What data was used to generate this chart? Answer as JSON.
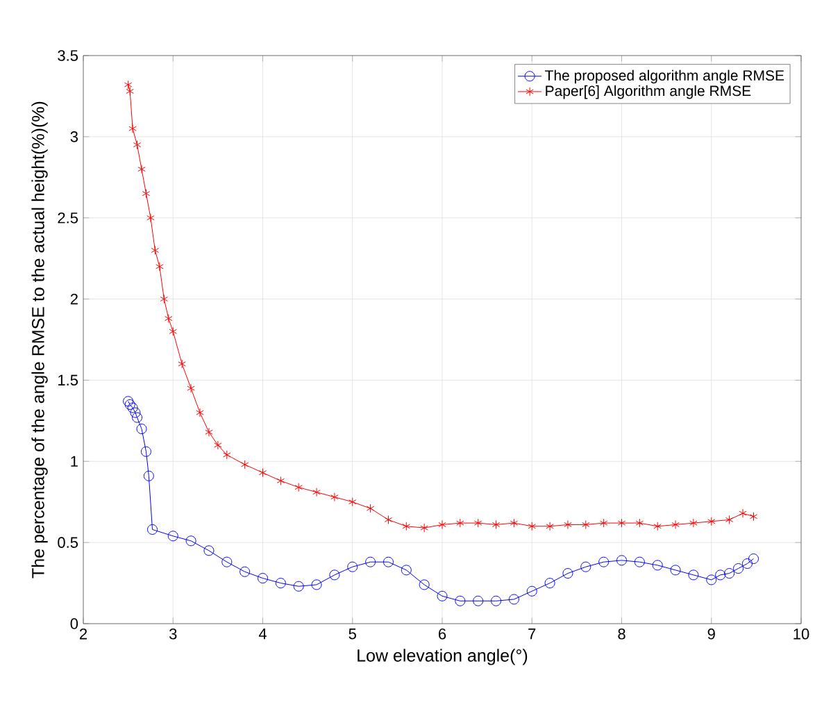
{
  "chart_data": {
    "type": "line",
    "xlabel": "Low elevation angle(°)",
    "ylabel": "The percentage of the angle RMSE to the actual height(%)(%)",
    "xlim": [
      2,
      10
    ],
    "ylim": [
      0,
      3.5
    ],
    "xticks": [
      2,
      3,
      4,
      5,
      6,
      7,
      8,
      9,
      10
    ],
    "yticks": [
      0,
      0.5,
      1,
      1.5,
      2,
      2.5,
      3,
      3.5
    ],
    "grid": true,
    "legend": "top right",
    "series": [
      {
        "name": "The proposed algorithm angle RMSE",
        "color": "#0000ff",
        "marker": "circle",
        "x": [
          2.5,
          2.52,
          2.55,
          2.58,
          2.6,
          2.65,
          2.7,
          2.73,
          2.77,
          3.0,
          3.2,
          3.4,
          3.6,
          3.8,
          4.0,
          4.2,
          4.4,
          4.6,
          4.8,
          5.0,
          5.2,
          5.4,
          5.6,
          5.8,
          6.0,
          6.2,
          6.4,
          6.6,
          6.8,
          7.0,
          7.2,
          7.4,
          7.6,
          7.8,
          8.0,
          8.2,
          8.4,
          8.6,
          8.8,
          9.0,
          9.1,
          9.2,
          9.3,
          9.4,
          9.47
        ],
        "values": [
          1.37,
          1.35,
          1.33,
          1.3,
          1.27,
          1.2,
          1.06,
          0.91,
          0.58,
          0.54,
          0.51,
          0.45,
          0.38,
          0.32,
          0.28,
          0.25,
          0.23,
          0.24,
          0.3,
          0.35,
          0.38,
          0.38,
          0.33,
          0.24,
          0.17,
          0.14,
          0.14,
          0.14,
          0.15,
          0.2,
          0.25,
          0.31,
          0.35,
          0.38,
          0.39,
          0.38,
          0.36,
          0.33,
          0.3,
          0.27,
          0.3,
          0.31,
          0.34,
          0.37,
          0.4
        ]
      },
      {
        "name": "Paper[6] Algorithm angle RMSE",
        "color": "#ff0000",
        "marker": "cross",
        "x": [
          2.5,
          2.52,
          2.55,
          2.6,
          2.65,
          2.7,
          2.75,
          2.8,
          2.85,
          2.9,
          2.95,
          3.0,
          3.1,
          3.2,
          3.3,
          3.4,
          3.5,
          3.6,
          3.8,
          4.0,
          4.2,
          4.4,
          4.6,
          4.8,
          5.0,
          5.2,
          5.4,
          5.6,
          5.8,
          6.0,
          6.2,
          6.4,
          6.6,
          6.8,
          7.0,
          7.2,
          7.4,
          7.6,
          7.8,
          8.0,
          8.2,
          8.4,
          8.6,
          8.8,
          9.0,
          9.2,
          9.35,
          9.47
        ],
        "values": [
          3.32,
          3.28,
          3.05,
          2.95,
          2.8,
          2.65,
          2.5,
          2.3,
          2.2,
          2.0,
          1.88,
          1.8,
          1.6,
          1.45,
          1.3,
          1.18,
          1.1,
          1.04,
          0.98,
          0.93,
          0.88,
          0.84,
          0.81,
          0.78,
          0.75,
          0.71,
          0.64,
          0.6,
          0.59,
          0.61,
          0.62,
          0.62,
          0.61,
          0.62,
          0.6,
          0.6,
          0.61,
          0.61,
          0.62,
          0.62,
          0.62,
          0.6,
          0.61,
          0.62,
          0.63,
          0.64,
          0.68,
          0.66
        ]
      }
    ]
  }
}
